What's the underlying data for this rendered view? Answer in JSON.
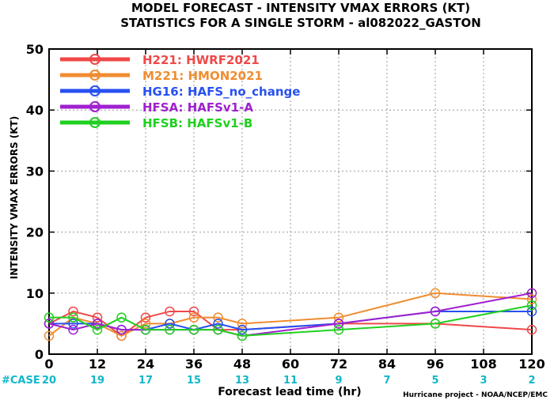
{
  "title_line1": "MODEL FORECAST - INTENSITY VMAX ERRORS (KT)",
  "title_line2": "STATISTICS FOR A SINGLE STORM - al082022_GASTON",
  "case_label": "#CASE",
  "credit": "Hurricane project - NOAA/NCEP/EMC",
  "chart_data": {
    "type": "line",
    "xlabel": "Forecast lead time (hr)",
    "ylabel": "INTENSITY VMAX ERRORS (KT)",
    "xlim": [
      0,
      120
    ],
    "ylim": [
      0,
      50
    ],
    "x_ticks": [
      0,
      12,
      24,
      36,
      48,
      60,
      72,
      84,
      96,
      108,
      120
    ],
    "y_ticks": [
      0,
      10,
      20,
      30,
      40,
      50
    ],
    "grid": true,
    "legend_position": "top-left",
    "case_x": [
      0,
      12,
      24,
      36,
      48,
      60,
      72,
      84,
      96,
      108,
      120
    ],
    "cases": [
      "20",
      "19",
      "17",
      "15",
      "13",
      "11",
      "9",
      "7",
      "5",
      "3",
      "2"
    ],
    "series": [
      {
        "name": "H221: HWRF2021",
        "color": "#f04848",
        "x": [
          0,
          6,
          12,
          18,
          24,
          30,
          36,
          42,
          48,
          72,
          96,
          120
        ],
        "values": [
          5,
          7,
          6,
          3,
          6,
          7,
          7,
          4,
          4,
          5,
          5,
          4
        ]
      },
      {
        "name": "M221: HMON2021",
        "color": "#f08c30",
        "x": [
          0,
          6,
          12,
          18,
          24,
          30,
          36,
          42,
          48,
          72,
          96,
          120
        ],
        "values": [
          3,
          6,
          5,
          3,
          5,
          5,
          6,
          6,
          5,
          6,
          10,
          9
        ]
      },
      {
        "name": "HG16: HAFS_no_change",
        "color": "#2850f0",
        "x": [
          0,
          6,
          12,
          18,
          24,
          30,
          36,
          42,
          48,
          72,
          96,
          120
        ],
        "values": [
          5,
          5,
          5,
          4,
          4,
          5,
          4,
          5,
          4,
          5,
          7,
          7
        ]
      },
      {
        "name": "HFSA: HAFSv1-A",
        "color": "#a020d0",
        "x": [
          0,
          6,
          12,
          18,
          24,
          30,
          36,
          42,
          48,
          72,
          96,
          120
        ],
        "values": [
          5,
          4,
          5,
          4,
          4,
          4,
          4,
          4,
          3,
          5,
          7,
          10
        ]
      },
      {
        "name": "HFSB: HAFSv1-B",
        "color": "#20d020",
        "x": [
          0,
          6,
          12,
          18,
          24,
          30,
          36,
          42,
          48,
          72,
          96,
          120
        ],
        "values": [
          6,
          6,
          4,
          6,
          4,
          4,
          4,
          4,
          3,
          4,
          5,
          8
        ]
      }
    ]
  }
}
